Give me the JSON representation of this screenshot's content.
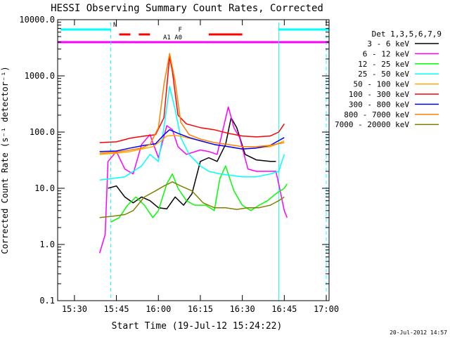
{
  "chart_data": {
    "type": "line",
    "title": "HESSI Observing Summary Count Rates, Corrected",
    "xlabel": "Start Time (19-Jul-12 15:24:22)",
    "ylabel": "Corrected Count Rate (s⁻¹ detector⁻¹)",
    "y_scale": "log",
    "ylim": [
      0.1,
      10000
    ],
    "xlim": [
      "15:24",
      "17:01"
    ],
    "x_ticks": [
      "15:30",
      "15:45",
      "16:00",
      "16:15",
      "16:30",
      "16:45",
      "17:00"
    ],
    "y_ticks": [
      "0.1",
      "1.0",
      "10.0",
      "100.0",
      "1000.0",
      "10000.0"
    ],
    "timestamp": "20-Jul-2012 14:57",
    "legend_title": "Det 1,3,5,6,7,9",
    "legend_position": "right",
    "series": [
      {
        "name": "3 - 6 keV",
        "color": "#000000",
        "points": [
          [
            "15:42",
            10
          ],
          [
            "15:45",
            11
          ],
          [
            "15:48",
            7
          ],
          [
            "15:51",
            5.5
          ],
          [
            "15:54",
            7
          ],
          [
            "15:57",
            6
          ],
          [
            "16:00",
            4.5
          ],
          [
            "16:03",
            4.3
          ],
          [
            "16:06",
            7
          ],
          [
            "16:09",
            5
          ],
          [
            "16:12",
            8
          ],
          [
            "16:15",
            30
          ],
          [
            "16:18",
            35
          ],
          [
            "16:21",
            30
          ],
          [
            "16:24",
            60
          ],
          [
            "16:26",
            180
          ],
          [
            "16:28",
            120
          ],
          [
            "16:31",
            40
          ],
          [
            "16:35",
            32
          ],
          [
            "16:40",
            30
          ],
          [
            "16:42",
            30
          ]
        ]
      },
      {
        "name": "6 - 12 keV",
        "color": "#ff00ff",
        "points": [
          [
            "15:39",
            0.7
          ],
          [
            "15:41",
            1.5
          ],
          [
            "15:42",
            30
          ],
          [
            "15:45",
            45
          ],
          [
            "15:48",
            22
          ],
          [
            "15:51",
            18
          ],
          [
            "15:54",
            60
          ],
          [
            "15:57",
            90
          ],
          [
            "16:00",
            35
          ],
          [
            "16:03",
            130
          ],
          [
            "16:05",
            110
          ],
          [
            "16:07",
            55
          ],
          [
            "16:10",
            40
          ],
          [
            "16:15",
            48
          ],
          [
            "16:18",
            45
          ],
          [
            "16:21",
            40
          ],
          [
            "16:25",
            280
          ],
          [
            "16:27",
            120
          ],
          [
            "16:29",
            80
          ],
          [
            "16:32",
            22
          ],
          [
            "16:35",
            20
          ],
          [
            "16:40",
            20
          ],
          [
            "16:42",
            20
          ],
          [
            "16:43",
            12
          ],
          [
            "16:45",
            4
          ],
          [
            "16:46",
            3
          ]
        ]
      },
      {
        "name": "12 - 25 keV",
        "color": "#00ff00",
        "points": [
          [
            "15:43",
            2.5
          ],
          [
            "15:46",
            3
          ],
          [
            "15:49",
            5
          ],
          [
            "15:52",
            7
          ],
          [
            "15:55",
            5
          ],
          [
            "15:58",
            3
          ],
          [
            "16:00",
            4
          ],
          [
            "16:03",
            12
          ],
          [
            "16:05",
            18
          ],
          [
            "16:07",
            10
          ],
          [
            "16:10",
            6
          ],
          [
            "16:13",
            5
          ],
          [
            "16:17",
            5
          ],
          [
            "16:20",
            4
          ],
          [
            "16:22",
            15
          ],
          [
            "16:24",
            25
          ],
          [
            "16:27",
            9
          ],
          [
            "16:30",
            5
          ],
          [
            "16:33",
            4
          ],
          [
            "16:36",
            5
          ],
          [
            "16:39",
            6
          ],
          [
            "16:42",
            8
          ],
          [
            "16:45",
            10
          ],
          [
            "16:46",
            12
          ]
        ]
      },
      {
        "name": "25 - 50 keV",
        "color": "#00ffff",
        "points": [
          [
            "15:39",
            14
          ],
          [
            "15:44",
            15
          ],
          [
            "15:48",
            16
          ],
          [
            "15:51",
            20
          ],
          [
            "15:54",
            25
          ],
          [
            "15:57",
            40
          ],
          [
            "16:00",
            30
          ],
          [
            "16:02",
            120
          ],
          [
            "16:04",
            650
          ],
          [
            "16:06",
            250
          ],
          [
            "16:08",
            80
          ],
          [
            "16:11",
            40
          ],
          [
            "16:15",
            25
          ],
          [
            "16:18",
            20
          ],
          [
            "16:22",
            18
          ],
          [
            "16:26",
            17
          ],
          [
            "16:30",
            16
          ],
          [
            "16:35",
            16
          ],
          [
            "16:40",
            18
          ],
          [
            "16:43",
            20
          ],
          [
            "16:45",
            40
          ]
        ]
      },
      {
        "name": "50 - 100 keV",
        "color": "#ffaa00",
        "points": [
          [
            "15:39",
            40
          ],
          [
            "15:45",
            42
          ],
          [
            "15:50",
            45
          ],
          [
            "15:54",
            50
          ],
          [
            "15:58",
            55
          ],
          [
            "16:01",
            70
          ],
          [
            "16:03",
            85
          ],
          [
            "16:06",
            88
          ],
          [
            "16:10",
            80
          ],
          [
            "16:15",
            70
          ],
          [
            "16:20",
            60
          ],
          [
            "16:25",
            55
          ],
          [
            "16:30",
            50
          ],
          [
            "16:35",
            52
          ],
          [
            "16:40",
            55
          ],
          [
            "16:45",
            70
          ]
        ]
      },
      {
        "name": "100 - 300 keV",
        "color": "#ff0000",
        "points": [
          [
            "15:39",
            65
          ],
          [
            "15:45",
            67
          ],
          [
            "15:50",
            78
          ],
          [
            "15:55",
            85
          ],
          [
            "15:59",
            90
          ],
          [
            "16:02",
            180
          ],
          [
            "16:04",
            2200
          ],
          [
            "16:05",
            1200
          ],
          [
            "16:07",
            200
          ],
          [
            "16:10",
            140
          ],
          [
            "16:15",
            120
          ],
          [
            "16:20",
            110
          ],
          [
            "16:25",
            95
          ],
          [
            "16:30",
            85
          ],
          [
            "16:35",
            82
          ],
          [
            "16:40",
            85
          ],
          [
            "16:43",
            100
          ],
          [
            "16:45",
            140
          ]
        ]
      },
      {
        "name": "300 - 800 keV",
        "color": "#0000ff",
        "points": [
          [
            "15:39",
            45
          ],
          [
            "15:45",
            46
          ],
          [
            "15:50",
            52
          ],
          [
            "15:55",
            58
          ],
          [
            "15:59",
            62
          ],
          [
            "16:02",
            90
          ],
          [
            "16:04",
            110
          ],
          [
            "16:07",
            95
          ],
          [
            "16:11",
            80
          ],
          [
            "16:15",
            70
          ],
          [
            "16:20",
            60
          ],
          [
            "16:25",
            55
          ],
          [
            "16:30",
            50
          ],
          [
            "16:35",
            52
          ],
          [
            "16:40",
            58
          ],
          [
            "16:45",
            80
          ]
        ]
      },
      {
        "name": "800 - 7000 keV",
        "color": "#ff7f00",
        "points": [
          [
            "15:39",
            42
          ],
          [
            "15:45",
            44
          ],
          [
            "15:50",
            48
          ],
          [
            "15:54",
            52
          ],
          [
            "15:57",
            60
          ],
          [
            "16:00",
            120
          ],
          [
            "16:02",
            700
          ],
          [
            "16:04",
            2500
          ],
          [
            "16:06",
            800
          ],
          [
            "16:08",
            150
          ],
          [
            "16:11",
            90
          ],
          [
            "16:15",
            75
          ],
          [
            "16:20",
            65
          ],
          [
            "16:25",
            60
          ],
          [
            "16:30",
            55
          ],
          [
            "16:35",
            55
          ],
          [
            "16:40",
            58
          ],
          [
            "16:45",
            65
          ]
        ]
      },
      {
        "name": "7000 - 20000 keV",
        "color": "#808000",
        "points": [
          [
            "15:39",
            3
          ],
          [
            "15:44",
            3.2
          ],
          [
            "15:48",
            3.4
          ],
          [
            "15:51",
            4
          ],
          [
            "15:55",
            7
          ],
          [
            "15:59",
            9
          ],
          [
            "16:02",
            11
          ],
          [
            "16:05",
            13
          ],
          [
            "16:08",
            11
          ],
          [
            "16:12",
            9
          ],
          [
            "16:16",
            5.5
          ],
          [
            "16:20",
            4.5
          ],
          [
            "16:24",
            4.5
          ],
          [
            "16:28",
            4.2
          ],
          [
            "16:32",
            4.5
          ],
          [
            "16:36",
            4.5
          ],
          [
            "16:40",
            5
          ],
          [
            "16:43",
            6
          ],
          [
            "16:45",
            7
          ]
        ]
      }
    ],
    "status_bars": [
      {
        "label": "N",
        "color": "#00ffff",
        "segments": [
          [
            "15:25",
            "15:43"
          ],
          [
            "16:43",
            "17:01"
          ]
        ]
      },
      {
        "label": "F",
        "color": "#ff0000",
        "segments": [
          [
            "15:46",
            "15:50"
          ],
          [
            "15:53",
            "15:57"
          ],
          [
            "16:18",
            "16:30"
          ]
        ]
      },
      {
        "label": "A1 A0",
        "color": "#ff00ff",
        "segments": [
          [
            "15:24",
            "17:01"
          ]
        ]
      }
    ],
    "vertical_lines": [
      {
        "time": "15:43",
        "style": "dashed",
        "color": "#00ffff"
      },
      {
        "time": "16:43",
        "style": "solid",
        "color": "#00ffff"
      },
      {
        "time": "17:00",
        "style": "dashed",
        "color": "#00ffff"
      },
      {
        "time": "15:24",
        "style": "solid",
        "color": "#00ffff"
      }
    ]
  }
}
